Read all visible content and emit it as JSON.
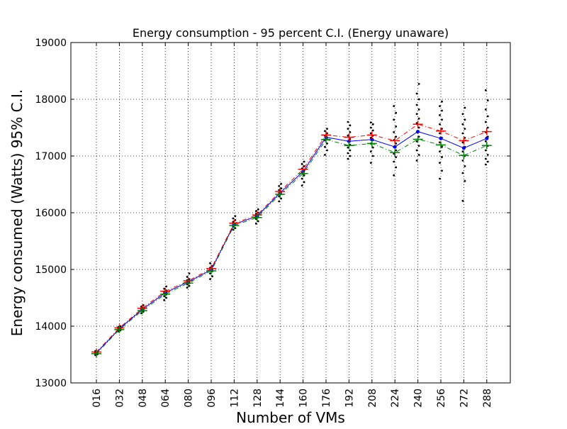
{
  "chart_data": {
    "type": "line",
    "title": "Energy consumption - 95 percent C.I. (Energy unaware)",
    "xlabel": "Number of VMs",
    "ylabel": "Energy consumed (Watts) 95% C.I.",
    "categories": [
      "016",
      "032",
      "048",
      "064",
      "080",
      "096",
      "112",
      "128",
      "144",
      "160",
      "176",
      "192",
      "208",
      "224",
      "240",
      "256",
      "272",
      "288"
    ],
    "ylim": [
      13000,
      19000
    ],
    "yticks": [
      13000,
      14000,
      15000,
      16000,
      17000,
      18000,
      19000
    ],
    "grid": true,
    "series": [
      {
        "role": "mean",
        "color": "#0000ff",
        "line": "solid",
        "marker": "dot",
        "values": [
          13530,
          13955,
          14295,
          14590,
          14780,
          14995,
          15795,
          15940,
          16350,
          16725,
          17330,
          17260,
          17290,
          17160,
          17430,
          17310,
          17140,
          17310
        ]
      },
      {
        "role": "upper-ci",
        "color": "#ff0000",
        "line": "dashdot",
        "marker": "plus",
        "values": [
          13545,
          13970,
          14315,
          14615,
          14800,
          15015,
          15815,
          15960,
          16375,
          16765,
          17370,
          17330,
          17370,
          17270,
          17560,
          17440,
          17270,
          17430
        ]
      },
      {
        "role": "lower-ci",
        "color": "#008000",
        "line": "dashdot",
        "marker": "plus",
        "values": [
          13515,
          13940,
          14275,
          14565,
          14760,
          14975,
          15775,
          15915,
          16325,
          16690,
          17290,
          17185,
          17220,
          17060,
          17295,
          17195,
          17010,
          17185
        ]
      }
    ],
    "samples": {
      "color": "#000000",
      "marker": "small-dot",
      "values": [
        [
          13490,
          13505,
          13515,
          13520,
          13525,
          13530,
          13535,
          13540,
          13545,
          13550,
          13560
        ],
        [
          13910,
          13925,
          13940,
          13950,
          13955,
          13960,
          13965,
          13975,
          13985,
          14000
        ],
        [
          14230,
          14255,
          14270,
          14285,
          14295,
          14300,
          14310,
          14325,
          14345,
          14370
        ],
        [
          14460,
          14500,
          14530,
          14560,
          14580,
          14595,
          14610,
          14630,
          14660,
          14700
        ],
        [
          14680,
          14710,
          14740,
          14760,
          14780,
          14795,
          14810,
          14830,
          14870,
          14930
        ],
        [
          14830,
          14880,
          14930,
          14970,
          14995,
          15010,
          15030,
          15060,
          15110
        ],
        [
          15700,
          15730,
          15760,
          15780,
          15795,
          15810,
          15840,
          15870,
          15900,
          15940
        ],
        [
          15810,
          15850,
          15890,
          15920,
          15940,
          15960,
          15980,
          16000,
          16030,
          16060
        ],
        [
          16200,
          16250,
          16290,
          16330,
          16350,
          16370,
          16400,
          16430,
          16470,
          16510
        ],
        [
          16480,
          16540,
          16600,
          16660,
          16700,
          16740,
          16780,
          16820,
          16860,
          16900
        ],
        [
          17020,
          17100,
          17160,
          17220,
          17280,
          17320,
          17360,
          17400,
          17440,
          17480
        ],
        [
          16950,
          17000,
          17050,
          17100,
          17150,
          17200,
          17260,
          17300,
          17360,
          17420,
          17480,
          17540,
          17600
        ],
        [
          16880,
          17000,
          17080,
          17150,
          17220,
          17280,
          17320,
          17360,
          17400,
          17450,
          17500,
          17560,
          17590
        ],
        [
          16660,
          16800,
          16900,
          16980,
          17040,
          17100,
          17160,
          17220,
          17280,
          17340,
          17420,
          17520,
          17640,
          17760,
          17880
        ],
        [
          16920,
          17020,
          17100,
          17180,
          17260,
          17340,
          17420,
          17500,
          17580,
          17660,
          17740,
          17820,
          17900,
          18000,
          18100,
          18270
        ],
        [
          16600,
          16740,
          16880,
          16980,
          17080,
          17160,
          17240,
          17320,
          17400,
          17480,
          17560,
          17640,
          17720,
          17800,
          17880,
          17960
        ],
        [
          16210,
          16560,
          16700,
          16820,
          16920,
          17000,
          17080,
          17160,
          17240,
          17320,
          17400,
          17480,
          17560,
          17640,
          17740,
          17850
        ],
        [
          16850,
          16900,
          16950,
          17020,
          17100,
          17180,
          17260,
          17340,
          17420,
          17500,
          17600,
          17700,
          17820,
          17980,
          18160
        ]
      ]
    }
  }
}
